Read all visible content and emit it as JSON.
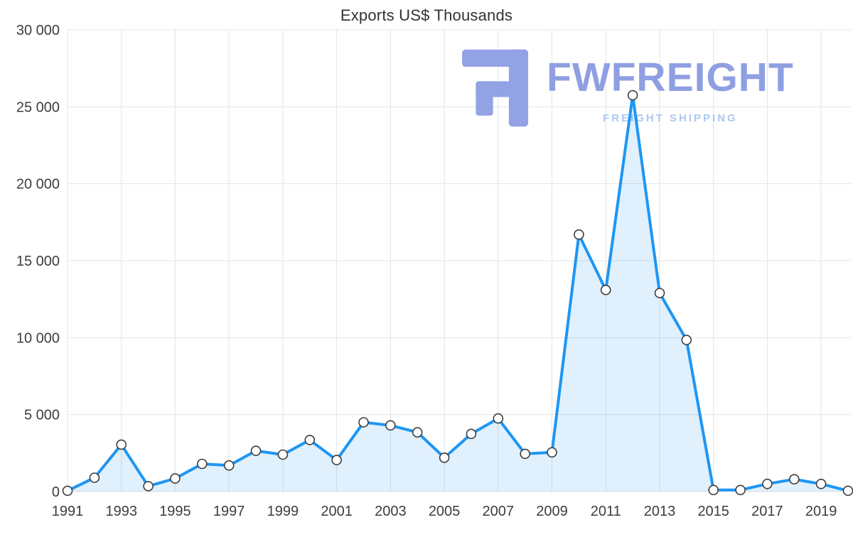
{
  "page": {
    "background": "#ffffff"
  },
  "watermark": {
    "brand": "FWFREIGHT",
    "tagline": "FREIGHT SHIPPING",
    "logo_icon": "fwfreight-logo-icon",
    "brand_color": "#8697e0",
    "tagline_color": "#a6c4ee",
    "icon_color": "#8a9be2"
  },
  "chart_data": {
    "type": "area",
    "title": "Exports US$ Thousands",
    "x": [
      1991,
      1992,
      1993,
      1994,
      1995,
      1996,
      1997,
      1998,
      1999,
      2000,
      2001,
      2002,
      2003,
      2004,
      2005,
      2006,
      2007,
      2008,
      2009,
      2010,
      2011,
      2012,
      2013,
      2014,
      2015,
      2016,
      2017,
      2018,
      2019,
      2020
    ],
    "values": [
      50,
      900,
      3050,
      350,
      850,
      1800,
      1700,
      2650,
      2400,
      3350,
      2050,
      4500,
      4300,
      3850,
      2200,
      3750,
      4750,
      2450,
      2550,
      16700,
      13100,
      25750,
      12900,
      9850,
      100,
      100,
      500,
      800,
      500,
      50
    ],
    "xlabel": "",
    "ylabel": "",
    "ylim": [
      0,
      30000
    ],
    "yticks": [
      0,
      5000,
      10000,
      15000,
      20000,
      25000,
      30000
    ],
    "ytick_labels": [
      "0",
      "5 000",
      "10 000",
      "15 000",
      "20 000",
      "25 000",
      "30 000"
    ],
    "xticks": [
      1991,
      1993,
      1995,
      1997,
      1999,
      2001,
      2003,
      2005,
      2007,
      2009,
      2011,
      2013,
      2015,
      2017,
      2019
    ],
    "grid": true,
    "legend": "none",
    "line_color": "#1e96f3",
    "area_fill": "rgba(33,150,243,0.14)",
    "marker_fill": "#ffffff",
    "marker_stroke": "#3d3d3d",
    "grid_color": "#e4e4e4",
    "tick_color": "#3d3d3d"
  }
}
